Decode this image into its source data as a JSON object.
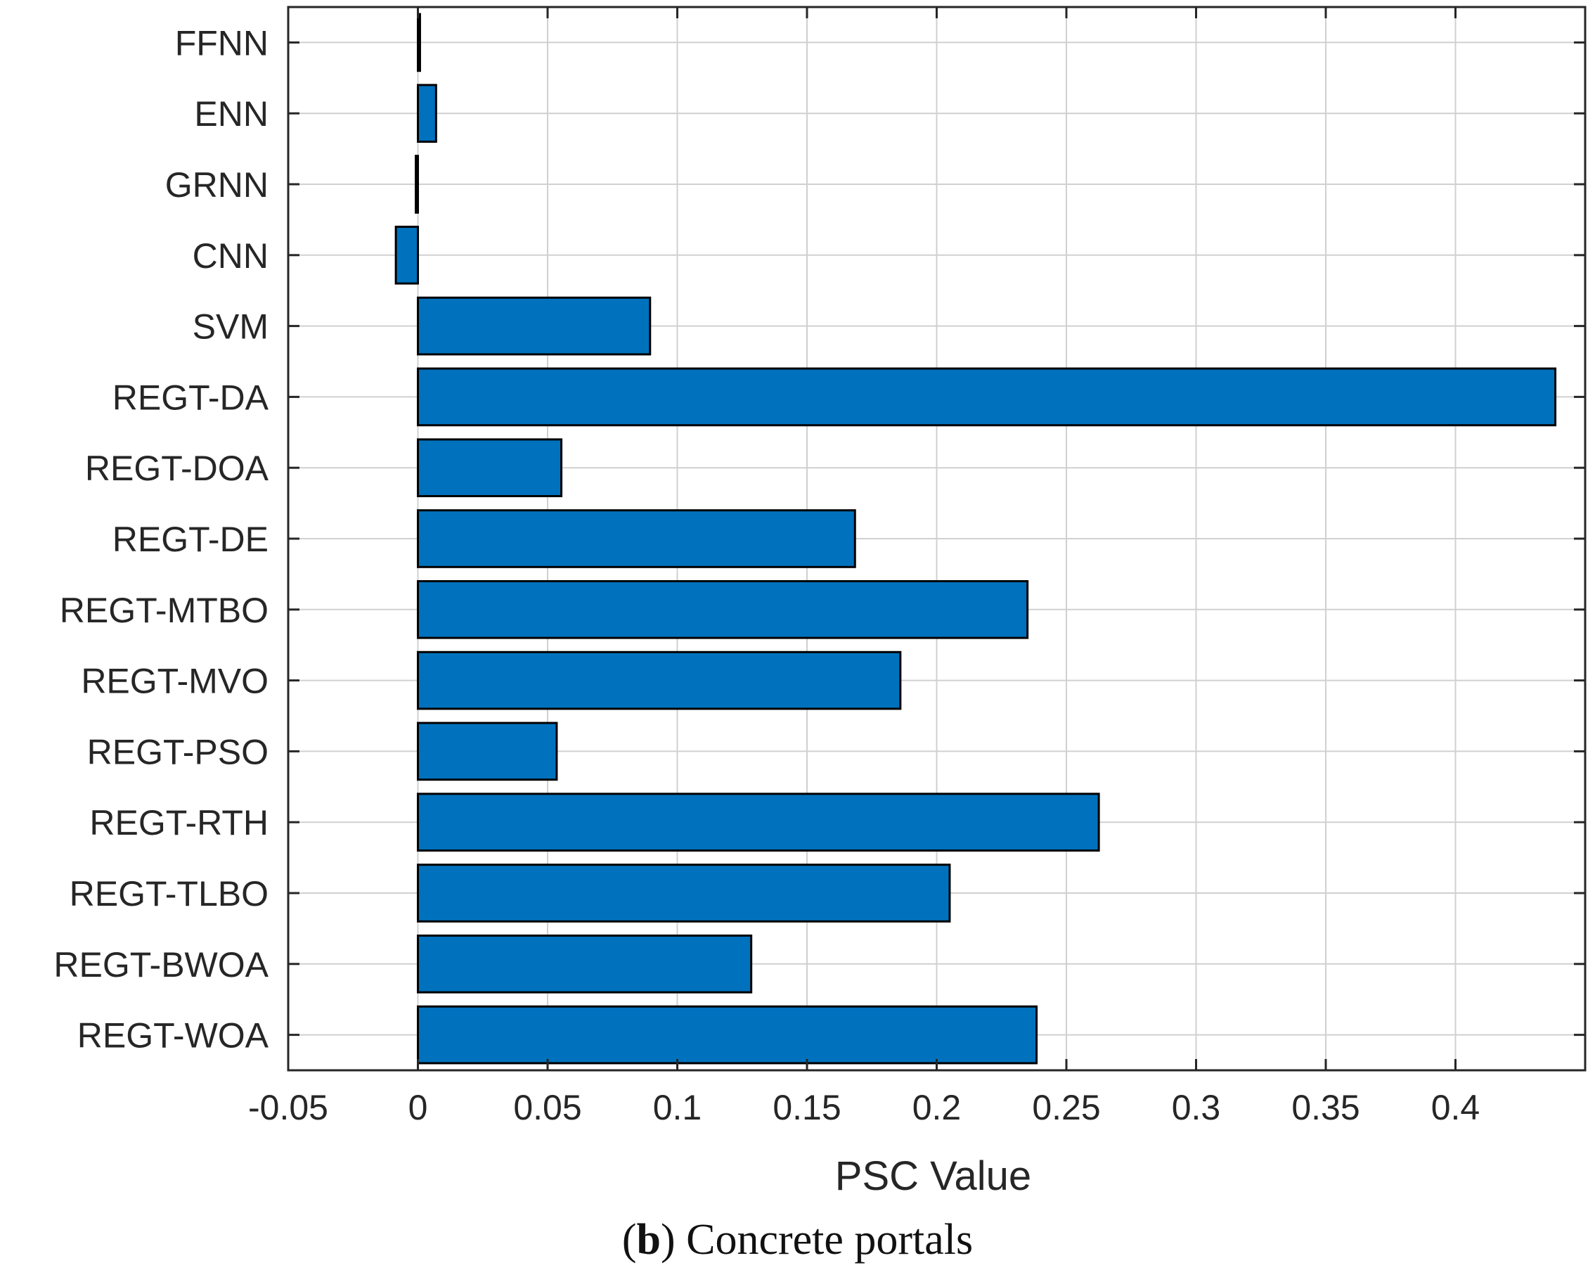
{
  "chart_data": {
    "type": "bar",
    "orientation": "horizontal",
    "categories": [
      "FFNN",
      "ENN",
      "GRNN",
      "CNN",
      "SVM",
      "REGT-DA",
      "REGT-DOA",
      "REGT-DE",
      "REGT-MTBO",
      "REGT-MVO",
      "REGT-PSO",
      "REGT-RTH",
      "REGT-TLBO",
      "REGT-BWOA",
      "REGT-WOA"
    ],
    "values": [
      0.0008,
      0.007,
      -0.0008,
      -0.0085,
      0.0895,
      0.4385,
      0.0553,
      0.1685,
      0.235,
      0.186,
      0.0535,
      0.2625,
      0.205,
      0.1285,
      0.2385
    ],
    "xlabel": "PSC Value",
    "ylabel": "",
    "xlim": [
      -0.05,
      0.45
    ],
    "xticks": [
      -0.05,
      0,
      0.05,
      0.1,
      0.15,
      0.2,
      0.25,
      0.3,
      0.35,
      0.4
    ],
    "xtick_labels": [
      "-0.05",
      "0",
      "0.05",
      "0.1",
      "0.15",
      "0.2",
      "0.25",
      "0.3",
      "0.35",
      "0.4"
    ],
    "grid": true,
    "bar_color": "#0072bd",
    "edge_color": "#000000"
  },
  "caption": {
    "label": "b",
    "text": "Concrete portals"
  }
}
